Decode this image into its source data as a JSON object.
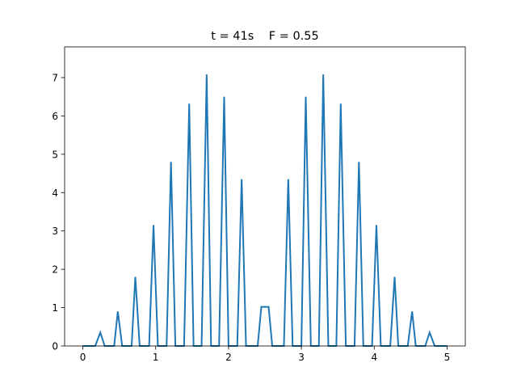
{
  "chart_data": {
    "type": "line",
    "title": "t = 41s    F = 0.55",
    "xlabel": "",
    "ylabel": "",
    "xlim": [
      -0.25,
      5.25
    ],
    "ylim": [
      0,
      7.8
    ],
    "grid": false,
    "x_ticks": [
      0,
      1,
      2,
      3,
      4,
      5
    ],
    "x_tick_labels": [
      "0",
      "1",
      "2",
      "3",
      "4",
      "5"
    ],
    "y_ticks": [
      0,
      1,
      2,
      3,
      4,
      5,
      6,
      7
    ],
    "y_tick_labels": [
      "0",
      "1",
      "2",
      "3",
      "4",
      "5",
      "6",
      "7"
    ],
    "line_color": "#1f77b4",
    "series": [
      {
        "x": [
          0.0,
          0.17,
          0.24,
          0.3,
          0.43,
          0.48,
          0.54,
          0.67,
          0.72,
          0.78,
          0.91,
          0.97,
          1.03,
          1.15,
          1.21,
          1.27,
          1.39,
          1.46,
          1.52,
          1.63,
          1.7,
          1.76,
          1.87,
          1.94,
          2.0,
          2.12,
          2.18,
          2.24,
          2.4,
          2.45,
          2.55,
          2.6,
          2.76,
          2.82,
          2.88,
          3.0,
          3.06,
          3.13,
          3.24,
          3.3,
          3.37,
          3.48,
          3.54,
          3.61,
          3.73,
          3.79,
          3.85,
          3.97,
          4.03,
          4.09,
          4.22,
          4.28,
          4.33,
          4.46,
          4.52,
          4.57,
          4.7,
          4.76,
          4.83,
          5.0
        ],
        "y": [
          0,
          0,
          0.35,
          0,
          0,
          0.9,
          0,
          0,
          1.8,
          0,
          0,
          3.15,
          0,
          0,
          4.8,
          0,
          0,
          6.32,
          0,
          0,
          7.08,
          0,
          0,
          6.5,
          0,
          0,
          4.35,
          0,
          0,
          1.02,
          1.02,
          0,
          0,
          4.35,
          0,
          0,
          6.5,
          0,
          0,
          7.08,
          0,
          0,
          6.32,
          0,
          0,
          4.8,
          0,
          0,
          3.15,
          0,
          0,
          1.8,
          0,
          0,
          0.9,
          0,
          0,
          0.35,
          0,
          0
        ]
      }
    ]
  }
}
